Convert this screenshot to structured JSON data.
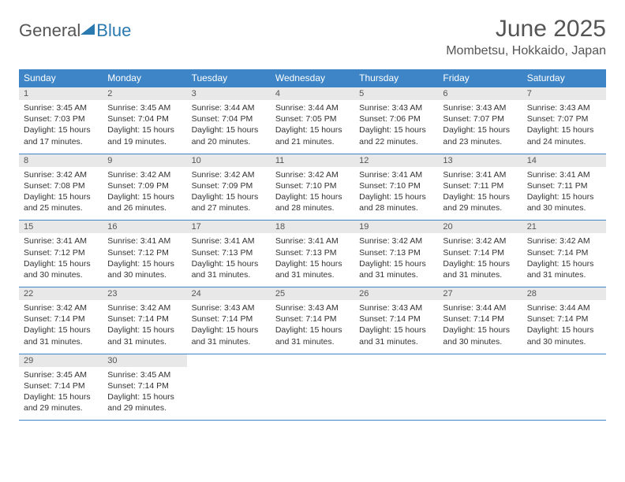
{
  "brand": {
    "part1": "General",
    "part2": "Blue"
  },
  "title": "June 2025",
  "location": "Mombetsu, Hokkaido, Japan",
  "colors": {
    "header_bg": "#3d85c6",
    "header_text": "#ffffff",
    "daynum_bg": "#e8e8e8",
    "border": "#3d85c6",
    "brand_gray": "#555555",
    "brand_blue": "#2a7ab0"
  },
  "fonts": {
    "title_size": 30,
    "location_size": 16,
    "dayhead_size": 12,
    "daynum_size": 11,
    "info_size": 10.5
  },
  "dayheads": [
    "Sunday",
    "Monday",
    "Tuesday",
    "Wednesday",
    "Thursday",
    "Friday",
    "Saturday"
  ],
  "weeks": [
    [
      {
        "n": "1",
        "sr": "3:45 AM",
        "ss": "7:03 PM",
        "dl": "15 hours and 17 minutes."
      },
      {
        "n": "2",
        "sr": "3:45 AM",
        "ss": "7:04 PM",
        "dl": "15 hours and 19 minutes."
      },
      {
        "n": "3",
        "sr": "3:44 AM",
        "ss": "7:04 PM",
        "dl": "15 hours and 20 minutes."
      },
      {
        "n": "4",
        "sr": "3:44 AM",
        "ss": "7:05 PM",
        "dl": "15 hours and 21 minutes."
      },
      {
        "n": "5",
        "sr": "3:43 AM",
        "ss": "7:06 PM",
        "dl": "15 hours and 22 minutes."
      },
      {
        "n": "6",
        "sr": "3:43 AM",
        "ss": "7:07 PM",
        "dl": "15 hours and 23 minutes."
      },
      {
        "n": "7",
        "sr": "3:43 AM",
        "ss": "7:07 PM",
        "dl": "15 hours and 24 minutes."
      }
    ],
    [
      {
        "n": "8",
        "sr": "3:42 AM",
        "ss": "7:08 PM",
        "dl": "15 hours and 25 minutes."
      },
      {
        "n": "9",
        "sr": "3:42 AM",
        "ss": "7:09 PM",
        "dl": "15 hours and 26 minutes."
      },
      {
        "n": "10",
        "sr": "3:42 AM",
        "ss": "7:09 PM",
        "dl": "15 hours and 27 minutes."
      },
      {
        "n": "11",
        "sr": "3:42 AM",
        "ss": "7:10 PM",
        "dl": "15 hours and 28 minutes."
      },
      {
        "n": "12",
        "sr": "3:41 AM",
        "ss": "7:10 PM",
        "dl": "15 hours and 28 minutes."
      },
      {
        "n": "13",
        "sr": "3:41 AM",
        "ss": "7:11 PM",
        "dl": "15 hours and 29 minutes."
      },
      {
        "n": "14",
        "sr": "3:41 AM",
        "ss": "7:11 PM",
        "dl": "15 hours and 30 minutes."
      }
    ],
    [
      {
        "n": "15",
        "sr": "3:41 AM",
        "ss": "7:12 PM",
        "dl": "15 hours and 30 minutes."
      },
      {
        "n": "16",
        "sr": "3:41 AM",
        "ss": "7:12 PM",
        "dl": "15 hours and 30 minutes."
      },
      {
        "n": "17",
        "sr": "3:41 AM",
        "ss": "7:13 PM",
        "dl": "15 hours and 31 minutes."
      },
      {
        "n": "18",
        "sr": "3:41 AM",
        "ss": "7:13 PM",
        "dl": "15 hours and 31 minutes."
      },
      {
        "n": "19",
        "sr": "3:42 AM",
        "ss": "7:13 PM",
        "dl": "15 hours and 31 minutes."
      },
      {
        "n": "20",
        "sr": "3:42 AM",
        "ss": "7:14 PM",
        "dl": "15 hours and 31 minutes."
      },
      {
        "n": "21",
        "sr": "3:42 AM",
        "ss": "7:14 PM",
        "dl": "15 hours and 31 minutes."
      }
    ],
    [
      {
        "n": "22",
        "sr": "3:42 AM",
        "ss": "7:14 PM",
        "dl": "15 hours and 31 minutes."
      },
      {
        "n": "23",
        "sr": "3:42 AM",
        "ss": "7:14 PM",
        "dl": "15 hours and 31 minutes."
      },
      {
        "n": "24",
        "sr": "3:43 AM",
        "ss": "7:14 PM",
        "dl": "15 hours and 31 minutes."
      },
      {
        "n": "25",
        "sr": "3:43 AM",
        "ss": "7:14 PM",
        "dl": "15 hours and 31 minutes."
      },
      {
        "n": "26",
        "sr": "3:43 AM",
        "ss": "7:14 PM",
        "dl": "15 hours and 31 minutes."
      },
      {
        "n": "27",
        "sr": "3:44 AM",
        "ss": "7:14 PM",
        "dl": "15 hours and 30 minutes."
      },
      {
        "n": "28",
        "sr": "3:44 AM",
        "ss": "7:14 PM",
        "dl": "15 hours and 30 minutes."
      }
    ],
    [
      {
        "n": "29",
        "sr": "3:45 AM",
        "ss": "7:14 PM",
        "dl": "15 hours and 29 minutes."
      },
      {
        "n": "30",
        "sr": "3:45 AM",
        "ss": "7:14 PM",
        "dl": "15 hours and 29 minutes."
      },
      null,
      null,
      null,
      null,
      null
    ]
  ],
  "labels": {
    "sunrise": "Sunrise:",
    "sunset": "Sunset:",
    "daylight": "Daylight:"
  }
}
